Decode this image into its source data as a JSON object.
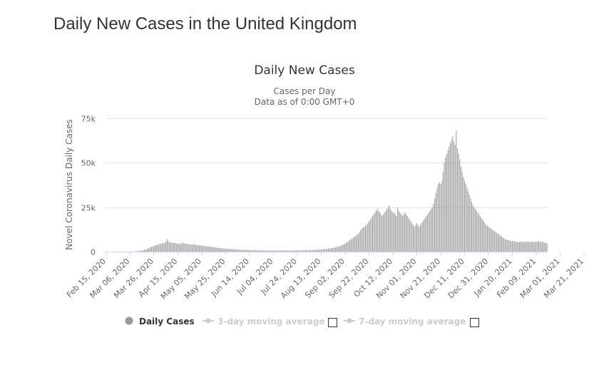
{
  "page": {
    "heading": "Daily New Cases in the United Kingdom"
  },
  "chart_data": {
    "type": "bar",
    "title": "Daily New Cases",
    "subtitle_lines": [
      "Cases per Day",
      "Data as of 0:00 GMT+0"
    ],
    "ylabel": "Novel Coronavirus Daily Cases",
    "xlabel": "",
    "ylim": [
      0,
      75000
    ],
    "y_ticks": [
      0,
      25000,
      50000,
      75000
    ],
    "y_tick_labels": [
      "0",
      "25k",
      "50k",
      "75k"
    ],
    "x_tick_labels": [
      "Feb 15, 2020",
      "Mar 06, 2020",
      "Mar 26, 2020",
      "Apr 15, 2020",
      "May 05, 2020",
      "May 25, 2020",
      "Jun 14, 2020",
      "Jul 04, 2020",
      "Jul 24, 2020",
      "Aug 13, 2020",
      "Sep 02, 2020",
      "Sep 22, 2020",
      "Oct 12, 2020",
      "Nov 01, 2020",
      "Nov 21, 2020",
      "Dec 11, 2020",
      "Dec 31, 2020",
      "Jan 20, 2021",
      "Feb 09, 2021",
      "Mar 01, 2021",
      "Mar 21, 2021"
    ],
    "grid": true,
    "legend_position": "bottom",
    "colors": {
      "bars": "#999999",
      "grid": "#e6e6e6",
      "axis": "#ccd6eb",
      "legend_inactive": "#cccccc"
    },
    "series": [
      {
        "name": "Daily Cases",
        "start_date": "2020-02-15",
        "interval": "daily",
        "values": [
          0,
          0,
          0,
          0,
          0,
          0,
          0,
          0,
          0,
          0,
          0,
          0,
          0,
          0,
          0,
          10,
          20,
          30,
          40,
          50,
          60,
          80,
          100,
          120,
          150,
          180,
          250,
          300,
          400,
          500,
          600,
          800,
          1000,
          1200,
          1500,
          1800,
          2100,
          2400,
          2700,
          3000,
          3300,
          3500,
          3700,
          3900,
          4100,
          4300,
          4500,
          4700,
          4900,
          5200,
          5500,
          7000,
          6000,
          5300,
          5100,
          5000,
          4900,
          4800,
          4700,
          4600,
          4500,
          4400,
          4300,
          4800,
          5000,
          4700,
          4500,
          4400,
          4300,
          4200,
          4100,
          4000,
          4000,
          3900,
          4500,
          3800,
          3700,
          3600,
          3500,
          3700,
          3400,
          3300,
          3200,
          3100,
          3000,
          2950,
          2900,
          2800,
          2700,
          2600,
          2500,
          2400,
          2300,
          2200,
          2100,
          2000,
          1900,
          1850,
          1800,
          1750,
          1700,
          1650,
          1600,
          1550,
          1500,
          1450,
          1400,
          1350,
          1300,
          1250,
          1200,
          1150,
          1100,
          1050,
          1000,
          980,
          960,
          940,
          920,
          900,
          880,
          860,
          840,
          820,
          800,
          780,
          760,
          740,
          720,
          700,
          690,
          680,
          670,
          660,
          650,
          640,
          630,
          620,
          610,
          600,
          600,
          600,
          600,
          600,
          600,
          620,
          640,
          660,
          680,
          700,
          650,
          600,
          580,
          600,
          620,
          640,
          660,
          700,
          680,
          650,
          700,
          720,
          740,
          700,
          680,
          700,
          750,
          800,
          820,
          800,
          780,
          820,
          850,
          900,
          950,
          1000,
          1050,
          1100,
          1150,
          1200,
          1250,
          1300,
          1350,
          1400,
          1500,
          1600,
          1700,
          1800,
          1900,
          2000,
          2100,
          2200,
          2400,
          2600,
          2800,
          3000,
          3200,
          3500,
          3800,
          4100,
          4500,
          5000,
          5500,
          6000,
          6500,
          7000,
          7500,
          8000,
          8500,
          9000,
          9500,
          10000,
          11000,
          12000,
          13000,
          13500,
          14000,
          14500,
          15000,
          16000,
          17000,
          18000,
          19000,
          20000,
          21000,
          22000,
          23000,
          24000,
          23000,
          22000,
          21000,
          20000,
          21000,
          22000,
          23000,
          24000,
          25000,
          26000,
          24000,
          23000,
          22000,
          22000,
          21000,
          20000,
          25000,
          23000,
          22000,
          21000,
          20000,
          21000,
          22000,
          21000,
          20000,
          19000,
          18000,
          17000,
          16000,
          15000,
          14000,
          15000,
          16000,
          15000,
          14000,
          15000,
          16000,
          17000,
          18000,
          19000,
          20000,
          21000,
          22000,
          23000,
          24000,
          25000,
          27000,
          30000,
          33000,
          36000,
          38000,
          39000,
          38000,
          40000,
          45000,
          50000,
          53000,
          55000,
          57000,
          59000,
          61000,
          63000,
          65000,
          62000,
          60000,
          68000,
          58000,
          55000,
          52000,
          48000,
          45000,
          42000,
          40000,
          38000,
          36000,
          34000,
          32000,
          30000,
          28000,
          26000,
          25000,
          24000,
          23000,
          22000,
          21000,
          20000,
          19000,
          18000,
          17000,
          16000,
          15000,
          14500,
          14000,
          13500,
          13000,
          12500,
          12000,
          11500,
          11000,
          10500,
          10000,
          9500,
          9000,
          8500,
          8000,
          7500,
          7000,
          6800,
          6600,
          6400,
          6200,
          6000,
          5800,
          6000,
          5800,
          5600,
          5500,
          5400,
          5500,
          5600,
          5700,
          5500,
          5400,
          5500,
          5600,
          5700,
          5500,
          5600,
          5700,
          5500,
          5400,
          5500,
          5600,
          5700,
          5800,
          5600,
          5400,
          5500,
          5300,
          5100,
          4900,
          4700
        ]
      }
    ],
    "legend": [
      {
        "name": "Daily Cases",
        "active": true
      },
      {
        "name": "3-day moving average",
        "active": false
      },
      {
        "name": "7-day moving average",
        "active": false
      }
    ]
  }
}
